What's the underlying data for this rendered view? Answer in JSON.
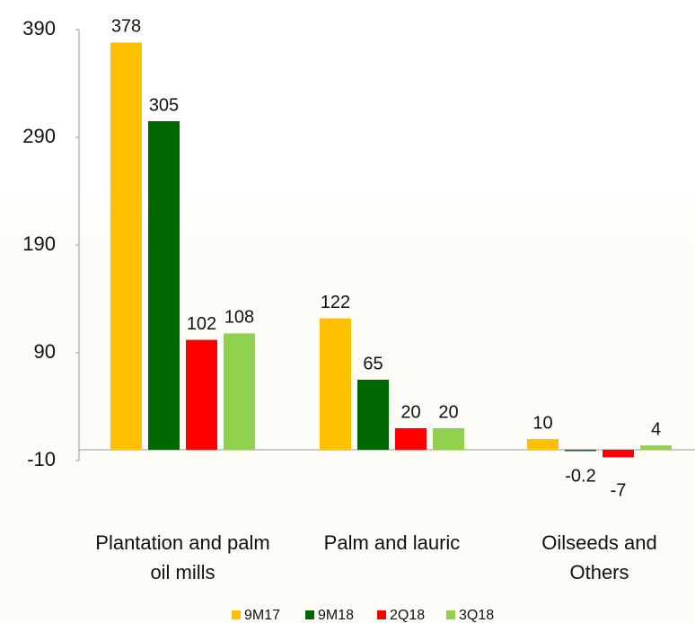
{
  "chart_data": {
    "type": "bar",
    "categories": [
      "Plantation and palm oil mills",
      "Palm and lauric",
      "Oilseeds and Others"
    ],
    "series": [
      {
        "name": "9M17",
        "color": "#ffc000",
        "values": [
          378,
          122,
          10
        ]
      },
      {
        "name": "9M18",
        "color": "#006600",
        "values": [
          305,
          65,
          -0.2
        ]
      },
      {
        "name": "2Q18",
        "color": "#ff0000",
        "values": [
          102,
          20,
          -7
        ]
      },
      {
        "name": "3Q18",
        "color": "#92d050",
        "values": [
          108,
          20,
          4
        ]
      }
    ],
    "ylim": [
      -10,
      390
    ],
    "yticks": [
      -10,
      90,
      190,
      290,
      390
    ],
    "grid": false,
    "legend": "bottom"
  }
}
